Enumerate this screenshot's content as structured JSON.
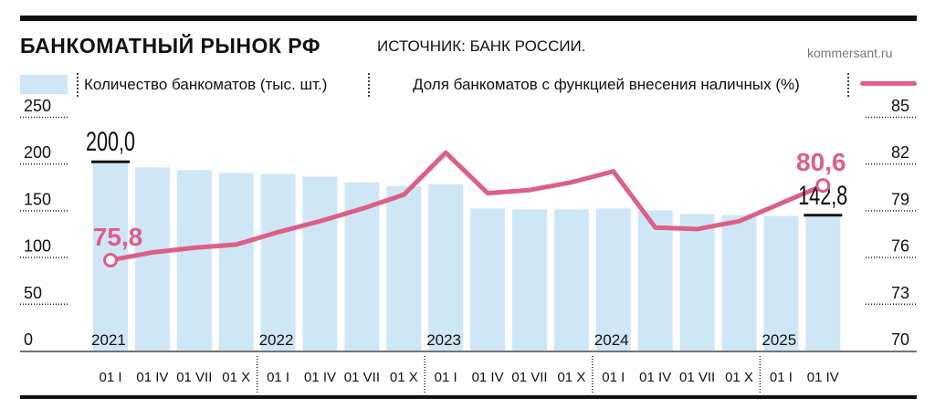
{
  "header": {
    "title": "БАНКОМАТНЫЙ РЫНОК РФ",
    "source": "ИСТОЧНИК: БАНК РОССИИ.",
    "site": "kommersant.ru"
  },
  "legend": {
    "bars_label": "Количество банкоматов (тыс. шт.)",
    "line_label": "Доля банкоматов с функцией внесения наличных (%)"
  },
  "colors": {
    "bar": "#cfe6f6",
    "line": "#dc5f86",
    "text": "#111111"
  },
  "chart_data": {
    "type": "bar",
    "categories": [
      "01 I",
      "01 IV",
      "01 VII",
      "01 X",
      "01 I",
      "01 IV",
      "01 VII",
      "01 X",
      "01 I",
      "01 IV",
      "01 VII",
      "01 X",
      "01 I",
      "01 IV",
      "01 VII",
      "01 X",
      "01 I",
      "01 IV"
    ],
    "years": [
      {
        "label": "2021",
        "index": 0
      },
      {
        "label": "2022",
        "index": 4
      },
      {
        "label": "2023",
        "index": 8
      },
      {
        "label": "2024",
        "index": 12
      },
      {
        "label": "2025",
        "index": 16
      }
    ],
    "series": [
      {
        "name": "Количество банкоматов (тыс. шт.)",
        "type": "bar",
        "axis": "left",
        "values": [
          200.0,
          196,
          193,
          190,
          189,
          186,
          180,
          176,
          178,
          152,
          151,
          151,
          152,
          150,
          146,
          145,
          144,
          142.8
        ]
      },
      {
        "name": "Доля банкоматов с функцией внесения наличных (%)",
        "type": "line",
        "axis": "right",
        "values": [
          75.8,
          76.3,
          76.6,
          76.8,
          77.6,
          78.3,
          79.1,
          80.0,
          82.7,
          80.1,
          80.3,
          80.8,
          81.5,
          77.9,
          77.8,
          78.3,
          null,
          80.6
        ]
      }
    ],
    "y_left": {
      "min": 0,
      "max": 250,
      "ticks": [
        0,
        50,
        100,
        150,
        200,
        250
      ]
    },
    "y_right": {
      "min": 70,
      "max": 85,
      "ticks": [
        70,
        73,
        76,
        79,
        82,
        85
      ]
    },
    "annotations": [
      {
        "series": 0,
        "index": 0,
        "text": "200,0"
      },
      {
        "series": 0,
        "index": 17,
        "text": "142,8"
      },
      {
        "series": 1,
        "index": 0,
        "text": "75,8"
      },
      {
        "series": 1,
        "index": 17,
        "text": "80,6"
      }
    ],
    "xlabel": "",
    "ylabel": ""
  }
}
